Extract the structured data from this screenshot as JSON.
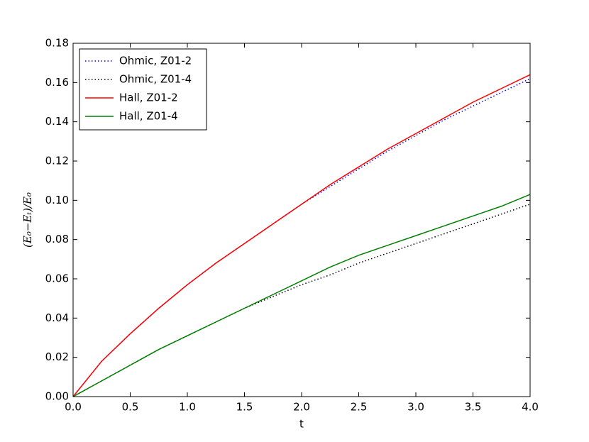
{
  "chart_data": {
    "type": "line",
    "xlabel": "t",
    "ylabel": "(E₀−Eₜ)/E₀",
    "x": [
      0,
      0.25,
      0.5,
      0.75,
      1.0,
      1.25,
      1.5,
      1.75,
      2.0,
      2.25,
      2.5,
      2.75,
      3.0,
      3.25,
      3.5,
      3.75,
      4.0
    ],
    "series": [
      {
        "name": "Ohmic, Z01-2",
        "color": "#0000ff",
        "style": "dotted",
        "values": [
          0,
          0.018,
          0.032,
          0.045,
          0.057,
          0.068,
          0.078,
          0.088,
          0.098,
          0.107,
          0.116,
          0.125,
          0.133,
          0.141,
          0.148,
          0.155,
          0.162
        ]
      },
      {
        "name": "Ohmic, Z01-4",
        "color": "#000000",
        "style": "dotted",
        "values": [
          0,
          0.008,
          0.016,
          0.024,
          0.031,
          0.038,
          0.045,
          0.051,
          0.057,
          0.062,
          0.068,
          0.073,
          0.078,
          0.083,
          0.088,
          0.093,
          0.098
        ]
      },
      {
        "name": "Hall, Z01-2",
        "color": "#ff0000",
        "style": "solid",
        "values": [
          0,
          0.018,
          0.032,
          0.045,
          0.057,
          0.068,
          0.078,
          0.088,
          0.098,
          0.108,
          0.117,
          0.126,
          0.134,
          0.142,
          0.15,
          0.157,
          0.164
        ]
      },
      {
        "name": "Hall, Z01-4",
        "color": "#008000",
        "style": "solid",
        "values": [
          0,
          0.008,
          0.016,
          0.024,
          0.031,
          0.038,
          0.045,
          0.052,
          0.059,
          0.066,
          0.072,
          0.077,
          0.082,
          0.087,
          0.092,
          0.097,
          0.103
        ]
      }
    ],
    "xlim": [
      0,
      4
    ],
    "xticks": [
      {
        "value": 0,
        "label": "0.0"
      },
      0.5,
      {
        "value": 1,
        "label": "1.0"
      },
      1.5,
      {
        "value": 2,
        "label": "2.0"
      },
      2.5,
      {
        "value": 3,
        "label": "3.0"
      },
      3.5,
      {
        "value": 4,
        "label": "4.0"
      }
    ],
    "ylim": [
      0,
      0.18
    ],
    "yticks": [
      {
        "value": 0,
        "label": "0.00"
      },
      0.02,
      0.04,
      0.06,
      0.08,
      {
        "value": 0.1,
        "label": "0.10"
      },
      0.12,
      0.14,
      0.16,
      0.18
    ],
    "legend": "upper left",
    "grid": false
  }
}
